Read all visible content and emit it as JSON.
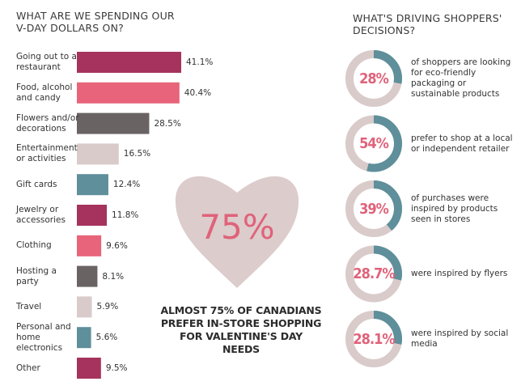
{
  "chart_data": [
    {
      "type": "hbar",
      "title": "WHAT ARE WE SPENDING OUR V-DAY DOLLARS ON?",
      "categories": [
        "Going out to a restaurant",
        "Food, alcohol and candy",
        "Flowers and/or decorations",
        "Entertainment or activities",
        "Gift cards",
        "Jewelry or accessories",
        "Clothing",
        "Hosting a party",
        "Travel",
        "Personal and home electronics",
        "Other"
      ],
      "values": [
        41.1,
        40.4,
        28.5,
        16.5,
        12.4,
        11.8,
        9.6,
        8.1,
        5.9,
        5.6,
        9.5
      ],
      "value_labels": [
        "41.1%",
        "40.4%",
        "28.5%",
        "16.5%",
        "12.4%",
        "11.8%",
        "9.6%",
        "8.1%",
        "5.9%",
        "5.6%",
        "9.5%"
      ],
      "colors": [
        "#a6335e",
        "#e8647a",
        "#6a6363",
        "#dacbcb",
        "#5e8f9a",
        "#a6335e",
        "#e8647a",
        "#6a6363",
        "#dacbcb",
        "#5e8f9a",
        "#a6335e"
      ]
    },
    {
      "type": "heart",
      "values": [
        75
      ],
      "value_labels": [
        "75%"
      ],
      "color": "#dccccc",
      "caption": "ALMOST 75% OF CANADIANS PREFER IN-STORE SHOPPING FOR VALENTINE'S DAY NEEDS"
    },
    {
      "type": "donut",
      "title": "WHAT'S DRIVING SHOPPERS' DECISIONS?",
      "values": [
        28,
        54,
        39,
        28.7,
        28.1
      ],
      "value_labels": [
        "28%",
        "54%",
        "39%",
        "28.7%",
        "28.1%"
      ],
      "categories": [
        "of shoppers are looking for eco-friendly packaging or sustainable products",
        "prefer to shop at a local or independent retailer",
        "of purchases were inspired by products seen in stores",
        "were inspired by flyers",
        "were inspired by social media"
      ],
      "color": "#5e8f9a",
      "track_color": "#dacbcb"
    }
  ]
}
